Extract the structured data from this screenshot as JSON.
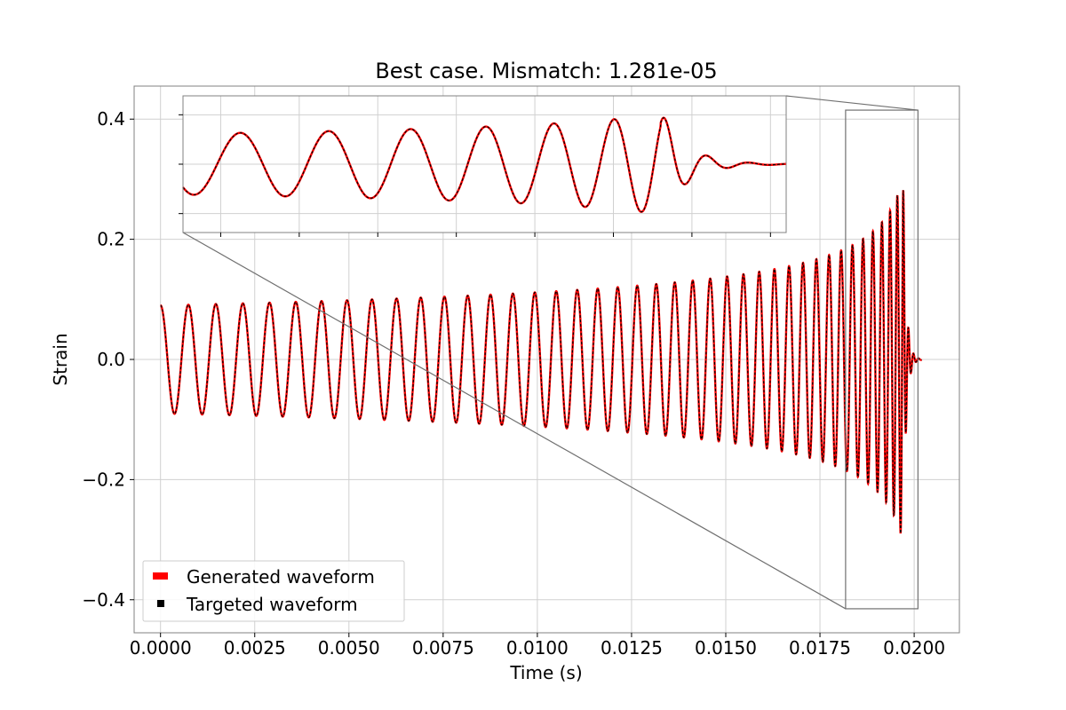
{
  "chart_data": {
    "type": "line",
    "title": "Best case. Mismatch: 1.281e-05",
    "xlabel": "Time (s)",
    "ylabel": "Strain",
    "xlim": [
      -0.0007,
      0.0212
    ],
    "ylim": [
      -0.455,
      0.455
    ],
    "xticks": [
      0.0,
      0.0025,
      0.005,
      0.0075,
      0.01,
      0.0125,
      0.015,
      0.0175,
      0.02
    ],
    "xtick_labels": [
      "0.0000",
      "0.0025",
      "0.0050",
      "0.0075",
      "0.0100",
      "0.0125",
      "0.0150",
      "0.0175",
      "0.0200"
    ],
    "yticks": [
      -0.4,
      -0.2,
      0.0,
      0.2,
      0.4
    ],
    "ytick_labels": [
      "−0.4",
      "−0.2",
      "0.0",
      "0.2",
      "0.4"
    ],
    "grid": true,
    "legend_position": "lower-left",
    "series": [
      {
        "name": "Generated waveform",
        "color": "#ff0000",
        "style": "solid",
        "description": "chirp waveform: amplitude ~0.09 at t=0 growing to ~0.33 at merger near t=0.0197 s, then ringdown to 0 by ~0.0202 s",
        "start_amplitude": 0.09,
        "peak_amplitude": 0.33,
        "merger_time": 0.0197,
        "end_time": 0.0202,
        "cycles_before_merger": 43
      },
      {
        "name": "Targeted waveform",
        "color": "#000000",
        "style": "dashed",
        "description": "overlaps the generated waveform almost exactly",
        "start_amplitude": 0.09,
        "peak_amplitude": 0.33,
        "merger_time": 0.0197,
        "end_time": 0.0202,
        "cycles_before_merger": 43
      }
    ],
    "inset": {
      "zoom_xlim": [
        0.01818,
        0.0201
      ],
      "zoom_ylim": [
        -0.415,
        0.415
      ],
      "has_tick_labels": false
    }
  }
}
